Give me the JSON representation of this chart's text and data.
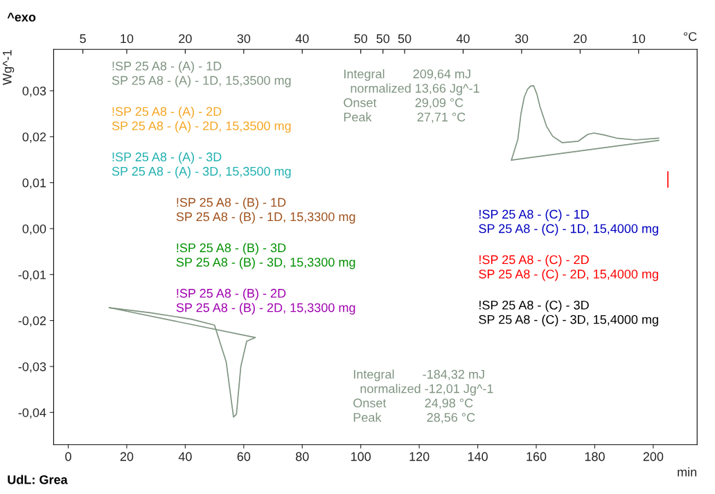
{
  "chart_data": {
    "type": "line",
    "xlabel": "min",
    "x2label": "°C",
    "ylabel": "Wg^-1",
    "xlim": [
      -5,
      215
    ],
    "ylim": [
      -0.047,
      0.039
    ],
    "xticks": [
      0,
      20,
      40,
      60,
      80,
      100,
      120,
      140,
      160,
      180,
      200
    ],
    "yticks": [
      {
        "value": 0.03,
        "label": "0,03"
      },
      {
        "value": 0.02,
        "label": "0,02"
      },
      {
        "value": 0.01,
        "label": "0,01"
      },
      {
        "value": 0.0,
        "label": "0,00"
      },
      {
        "value": -0.01,
        "label": "-0,01"
      },
      {
        "value": -0.02,
        "label": "-0,02"
      },
      {
        "value": -0.03,
        "label": "-0,03"
      },
      {
        "value": -0.04,
        "label": "-0,04"
      }
    ],
    "grid": false,
    "legend": false,
    "series": [
      {
        "name": "!SP 25 A8 - (A) - 1D\nSP 25 A8 - (A) - 1D, 15,3500 mg",
        "color": "#7f9480",
        "x": [
          14,
          28,
          42,
          50,
          54,
          56.5,
          57.5,
          59,
          61,
          63.9
        ],
        "values": [
          -0.0172,
          -0.0183,
          -0.0197,
          -0.021,
          -0.029,
          -0.041,
          -0.0404,
          -0.03,
          -0.0245,
          -0.0237
        ]
      },
      {
        "color": "#7f9480",
        "x": [
          14,
          63.9
        ],
        "values": [
          -0.0172,
          -0.0237
        ]
      },
      {
        "color": "#7f9480",
        "x": [
          151.5,
          153.7,
          154.8,
          155.9,
          157,
          158,
          159.1,
          160.2,
          161.3,
          163.5,
          165.6,
          168.9,
          174.3,
          177.6,
          179.7,
          183,
          187.4,
          193.9,
          201.9
        ],
        "values": [
          0.0149,
          0.0194,
          0.0251,
          0.0286,
          0.0303,
          0.031,
          0.0311,
          0.0293,
          0.0265,
          0.0223,
          0.0201,
          0.0187,
          0.019,
          0.0205,
          0.0208,
          0.0204,
          0.0197,
          0.0193,
          0.0197
        ]
      },
      {
        "color": "#7f9480",
        "x": [
          151.5,
          201.9
        ],
        "values": [
          0.0149,
          0.0192
        ]
      },
      {
        "name": "!SP 25 A8 - (A) - 2D\nSP 25 A8 - (A) - 2D, 15,3500 mg",
        "color": "#f5a623"
      },
      {
        "name": "!SP 25 A8 - (A) - 3D\nSP 25 A8 - (A) - 3D, 15,3500 mg",
        "color": "#20b0b0"
      },
      {
        "name": "!SP 25 A8 - (B) - 1D\nSP 25 A8 - (B) - 1D, 15,3300 mg",
        "color": "#a0521e"
      },
      {
        "name": "!SP 25 A8 - (B) - 3D\nSP 25 A8 - (B) - 3D, 15,3300 mg",
        "color": "#009000"
      },
      {
        "name": "!SP 25 A8 - (B) - 2D\nSP 25 A8 - (B) - 2D, 15,3300 mg",
        "color": "#a000b0"
      },
      {
        "name": "!SP 25 A8 - (C) - 1D\nSP 25 A8 - (C) - 1D, 15,4000 mg",
        "color": "#0000c0"
      },
      {
        "name": "!SP 25 A8 - (C) - 2D\nSP 25 A8 - (C) - 2D, 15,4000 mg",
        "color": "#ff0000",
        "x": [
          205,
          205
        ],
        "values": [
          0.0124,
          0.009
        ]
      },
      {
        "name": "!SP 25 A8 - (C) - 3D\nSP 25 A8 - (C) - 3D, 15,4000 mg",
        "color": "#000000"
      }
    ],
    "annotations": [
      "5",
      "10",
      "20",
      "30",
      "40",
      "50",
      "50",
      "50",
      "40",
      "30",
      "20",
      "10",
      "^exo",
      "Integral        209,64 mJ\n  normalized 13,66 Jg^-1\nOnset           29,09 °C\nPeak             27,71 °C",
      "Integral        -184,32 mJ\n  normalized -12,01 Jg^-1\nOnset           24,98 °C\nPeak             28,56 °C",
      "UdL: Grea"
    ]
  }
}
